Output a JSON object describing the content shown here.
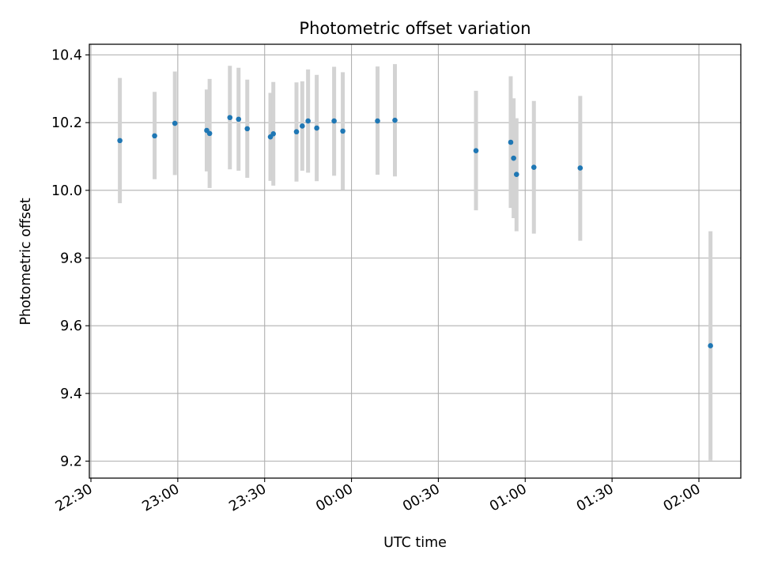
{
  "chart_data": {
    "type": "scatter",
    "title": "Photometric offset variation",
    "xlabel": "UTC time",
    "ylabel": "Photometric offset",
    "grid": true,
    "x_tick_labels": [
      "22:30",
      "23:00",
      "23:30",
      "00:00",
      "00:30",
      "01:00",
      "01:30",
      "02:00"
    ],
    "y_ticks": [
      9.2,
      9.4,
      9.6,
      9.8,
      10.0,
      10.2,
      10.4
    ],
    "y_tick_labels": [
      "9.2",
      "9.4",
      "9.6",
      "9.8",
      "10.0",
      "10.2",
      "10.4"
    ],
    "marker_color": "#1f77b4",
    "errorbar_color": "#d3d3d3",
    "points": [
      {
        "x": "22:40",
        "y": 10.147,
        "yerr_low": 9.962,
        "yerr_high": 10.332
      },
      {
        "x": "22:52",
        "y": 10.161,
        "yerr_low": 10.033,
        "yerr_high": 10.291
      },
      {
        "x": "22:59",
        "y": 10.198,
        "yerr_low": 10.045,
        "yerr_high": 10.351
      },
      {
        "x": "23:10",
        "y": 10.177,
        "yerr_low": 10.056,
        "yerr_high": 10.298
      },
      {
        "x": "23:11",
        "y": 10.168,
        "yerr_low": 10.007,
        "yerr_high": 10.329
      },
      {
        "x": "23:18",
        "y": 10.215,
        "yerr_low": 10.062,
        "yerr_high": 10.368
      },
      {
        "x": "23:21",
        "y": 10.21,
        "yerr_low": 10.058,
        "yerr_high": 10.362
      },
      {
        "x": "23:24",
        "y": 10.182,
        "yerr_low": 10.037,
        "yerr_high": 10.327
      },
      {
        "x": "23:32",
        "y": 10.158,
        "yerr_low": 10.028,
        "yerr_high": 10.288
      },
      {
        "x": "23:33",
        "y": 10.167,
        "yerr_low": 10.014,
        "yerr_high": 10.32
      },
      {
        "x": "23:41",
        "y": 10.173,
        "yerr_low": 10.026,
        "yerr_high": 10.319
      },
      {
        "x": "23:43",
        "y": 10.19,
        "yerr_low": 10.058,
        "yerr_high": 10.322
      },
      {
        "x": "23:45",
        "y": 10.205,
        "yerr_low": 10.052,
        "yerr_high": 10.357
      },
      {
        "x": "23:48",
        "y": 10.184,
        "yerr_low": 10.027,
        "yerr_high": 10.341
      },
      {
        "x": "23:54",
        "y": 10.205,
        "yerr_low": 10.043,
        "yerr_high": 10.365
      },
      {
        "x": "23:57",
        "y": 10.175,
        "yerr_low": 10.001,
        "yerr_high": 10.349
      },
      {
        "x": "00:09",
        "y": 10.205,
        "yerr_low": 10.046,
        "yerr_high": 10.366
      },
      {
        "x": "00:15",
        "y": 10.207,
        "yerr_low": 10.041,
        "yerr_high": 10.373
      },
      {
        "x": "00:43",
        "y": 10.117,
        "yerr_low": 9.941,
        "yerr_high": 10.294
      },
      {
        "x": "00:55",
        "y": 10.142,
        "yerr_low": 9.948,
        "yerr_high": 10.337
      },
      {
        "x": "00:56",
        "y": 10.095,
        "yerr_low": 9.918,
        "yerr_high": 10.272
      },
      {
        "x": "00:57",
        "y": 10.047,
        "yerr_low": 9.879,
        "yerr_high": 10.213
      },
      {
        "x": "01:03",
        "y": 10.068,
        "yerr_low": 9.872,
        "yerr_high": 10.264
      },
      {
        "x": "01:19",
        "y": 10.066,
        "yerr_low": 9.851,
        "yerr_high": 10.279
      },
      {
        "x": "02:04",
        "y": 9.541,
        "yerr_low": 9.202,
        "yerr_high": 9.879
      }
    ]
  }
}
